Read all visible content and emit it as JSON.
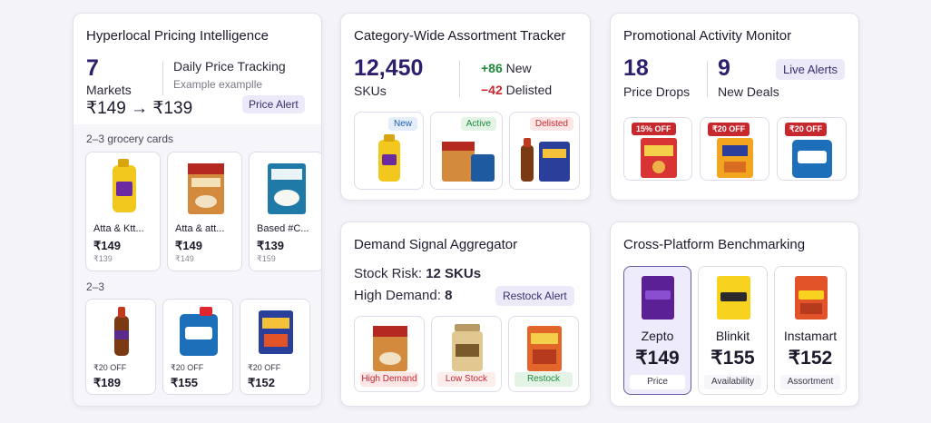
{
  "pricing": {
    "title": "Hyperlocal Pricing Intelligence",
    "markets_value": "7",
    "markets_label": "Markets",
    "tracking_title": "Daily Price Tracking",
    "tracking_sub": "Example examplle",
    "price_change": "₹149 → ₹139",
    "alert": "Price Alert",
    "section1": "2–3 grocery cards",
    "section2": "2–3",
    "cards": [
      {
        "name": "Atta & Ktt...",
        "price": "₹149",
        "old": "₹139"
      },
      {
        "name": "Atta & att...",
        "price": "₹149",
        "old": "₹149"
      },
      {
        "name": "Based #C...",
        "price": "₹139",
        "old": "₹159"
      }
    ],
    "offers": [
      {
        "label": "₹20 OFF",
        "price": "₹189"
      },
      {
        "label": "₹20 OFF",
        "price": "₹155"
      },
      {
        "label": "₹20 OFF",
        "price": "₹152"
      }
    ]
  },
  "assortment": {
    "title": "Category-Wide Assortment Tracker",
    "skus_value": "12,450",
    "skus_label": "SKUs",
    "new_value": "+86",
    "new_label": "New",
    "delisted_value": "−42",
    "delisted_label": "Delisted",
    "tags": [
      "New",
      "Active",
      "Delisted"
    ],
    "colors": {
      "new": "#1f8a3b",
      "delisted": "#c7282e"
    }
  },
  "promo": {
    "title": "Promotional Activity Monitor",
    "drops_value": "18",
    "drops_label": "Price Drops",
    "deals_value": "9",
    "deals_label": "New Deals",
    "live": "Live Alerts",
    "badges": [
      "15% OFF",
      "₹20 OFF",
      "₹20 OFF"
    ]
  },
  "demand": {
    "title": "Demand Signal Aggregator",
    "stock_prefix": "Stock Risk:",
    "stock_value": "12 SKUs",
    "demand_prefix": "High Demand:",
    "demand_value": "8",
    "alert": "Restock Alert",
    "tags": [
      "High Demand",
      "Low Stock",
      "Restock"
    ]
  },
  "bench": {
    "title": "Cross-Platform Benchmarking",
    "platforms": [
      {
        "name": "Zepto",
        "price": "₹149",
        "metric": "Price",
        "logo": "zepto"
      },
      {
        "name": "Blinkit",
        "price": "₹155",
        "metric": "Availability",
        "logo": "blinkit"
      },
      {
        "name": "Instamart",
        "price": "₹152",
        "metric": "Assortment",
        "logo": "instamart"
      }
    ]
  }
}
